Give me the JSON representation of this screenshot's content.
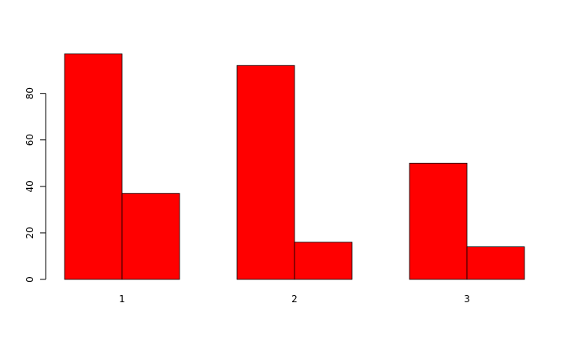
{
  "chart_data": {
    "type": "bar",
    "grouped": true,
    "categories": [
      "1",
      "2",
      "3"
    ],
    "series": [
      {
        "values": [
          97,
          92,
          50
        ]
      },
      {
        "values": [
          37,
          16,
          14
        ]
      }
    ],
    "ylim": [
      0,
      100
    ],
    "yticks": [
      0,
      20,
      40,
      60,
      80
    ],
    "title": "",
    "xlabel": "",
    "ylabel": "",
    "colors": {
      "bar_fill": "#ff0000",
      "bar_stroke": "#000000"
    }
  }
}
